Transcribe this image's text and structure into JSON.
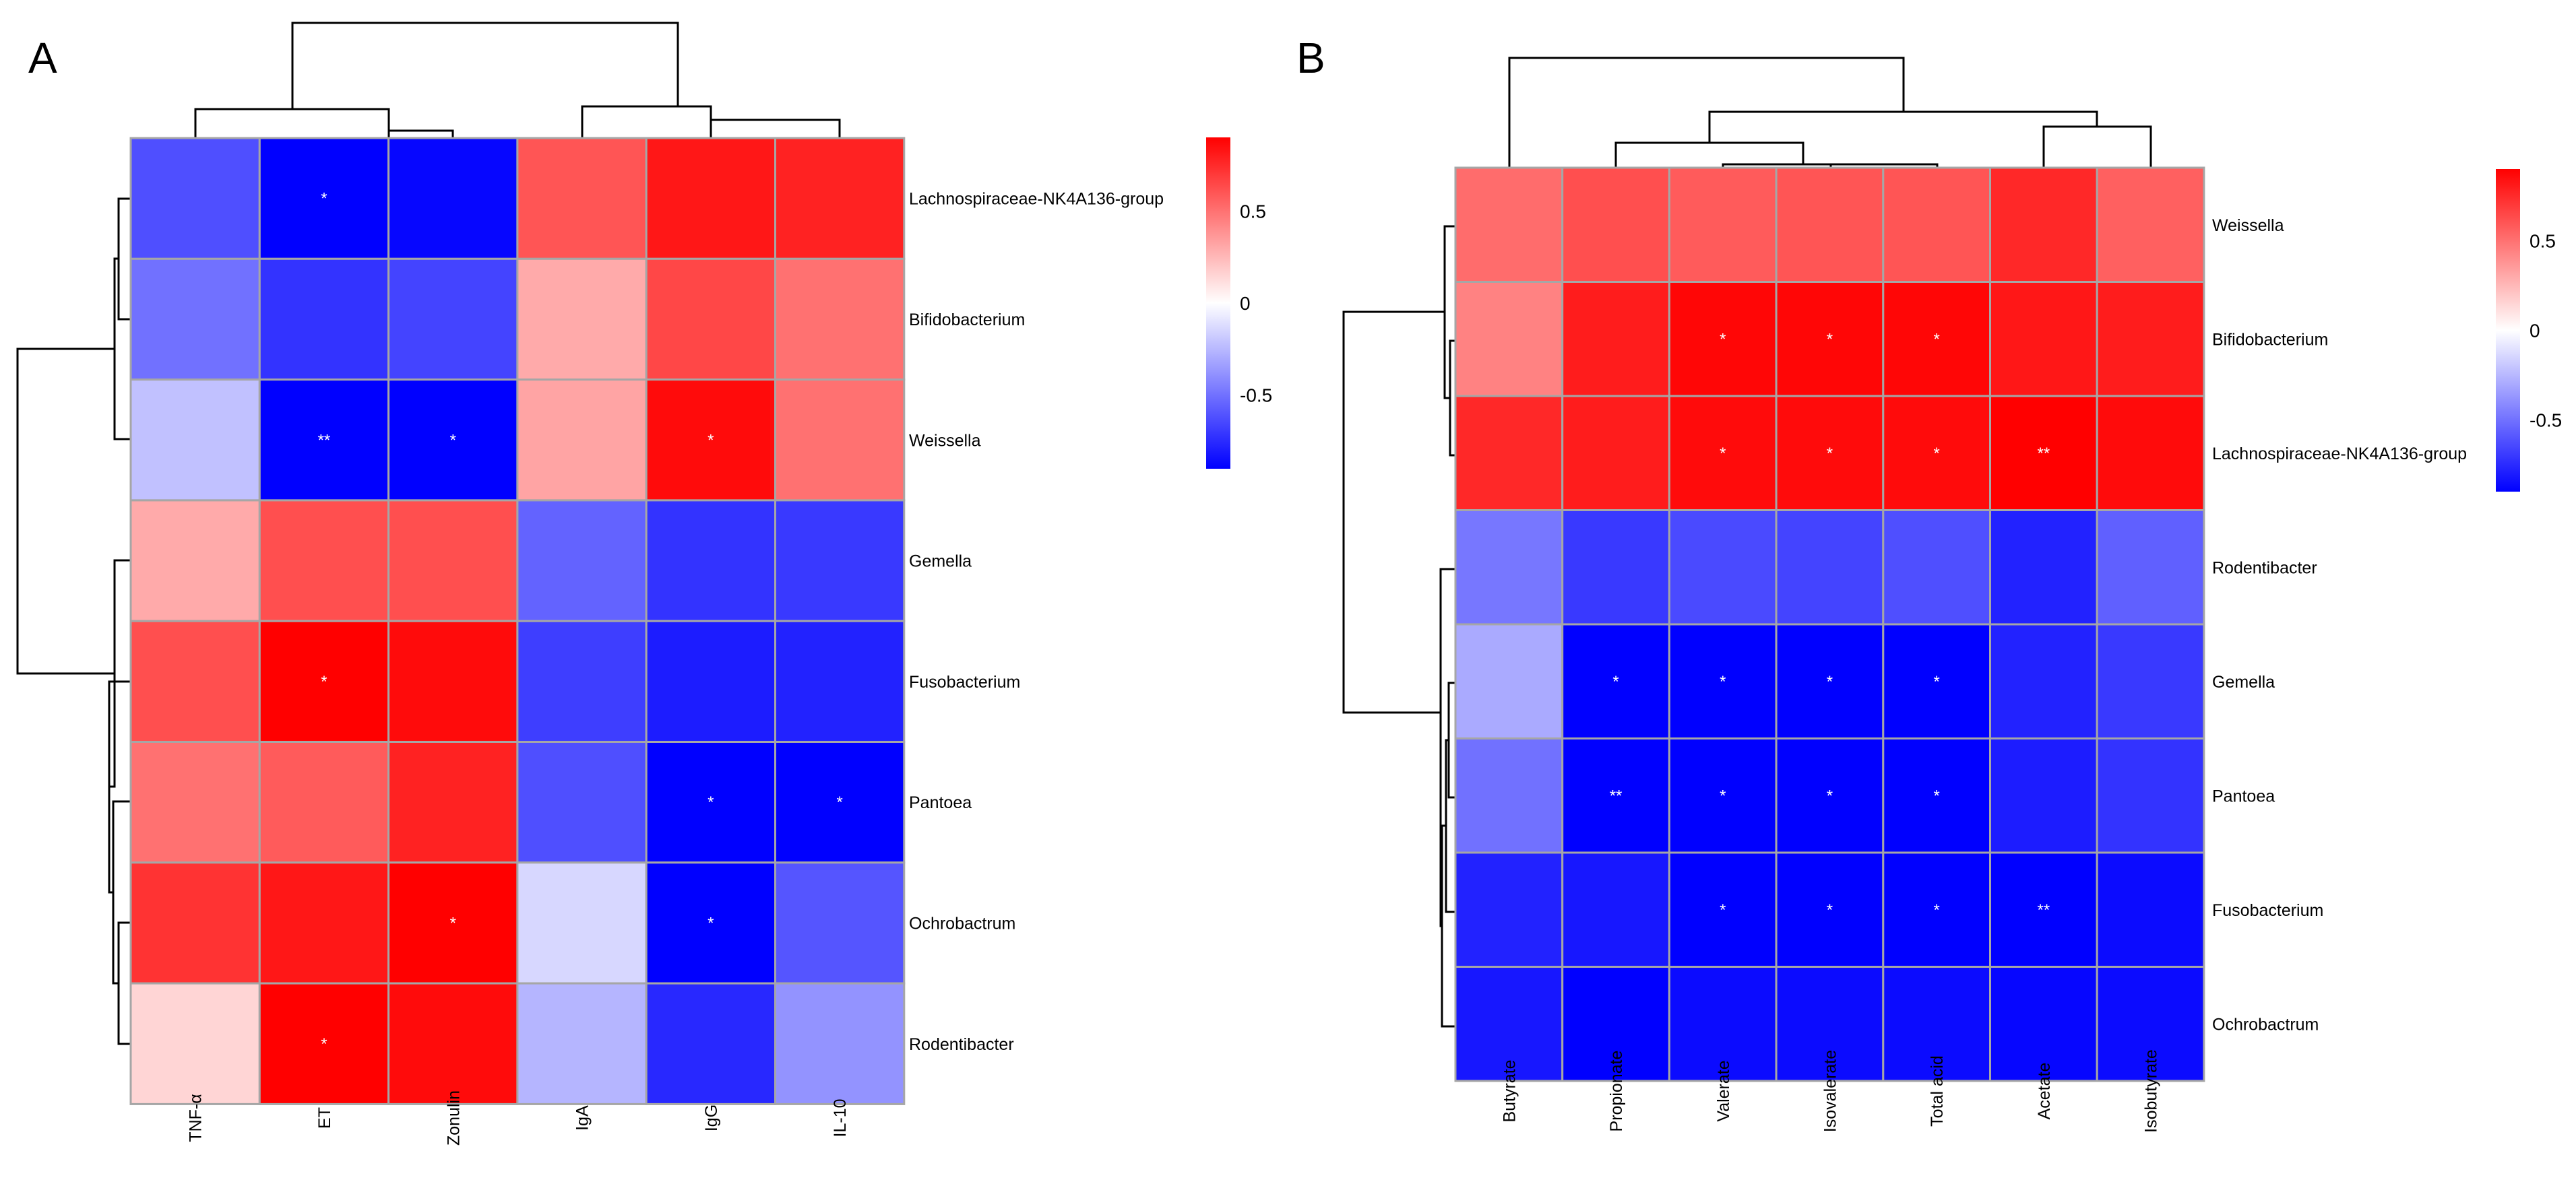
{
  "chart_data": [
    {
      "type": "heatmap",
      "panel_label": "A",
      "columns": [
        "TNF-α",
        "ET",
        "Zonulin",
        "IgA",
        "IgG",
        "IL-10"
      ],
      "rows": [
        "Lachnospiraceae-NK4A136-group",
        "Bifidobacterium",
        "Weissella",
        "Gemella",
        "Fusobacterium",
        "Pantoea",
        "Ochrobactrum",
        "Rodentibacter"
      ],
      "values": [
        [
          -0.62,
          -0.92,
          -0.88,
          0.6,
          0.82,
          0.78
        ],
        [
          -0.5,
          -0.72,
          -0.66,
          0.3,
          0.65,
          0.5
        ],
        [
          -0.22,
          -0.95,
          -0.94,
          0.32,
          0.86,
          0.5
        ],
        [
          0.3,
          0.62,
          0.62,
          -0.55,
          -0.72,
          -0.7
        ],
        [
          0.62,
          0.92,
          0.86,
          -0.68,
          -0.8,
          -0.78
        ],
        [
          0.5,
          0.58,
          0.78,
          -0.62,
          -0.93,
          -0.93
        ],
        [
          0.72,
          0.82,
          0.92,
          -0.14,
          -0.93,
          -0.6
        ],
        [
          0.15,
          0.9,
          0.86,
          -0.26,
          -0.76,
          -0.38
        ]
      ],
      "significance": [
        [
          "",
          "*",
          "",
          "",
          "",
          ""
        ],
        [
          "",
          "",
          "",
          "",
          "",
          ""
        ],
        [
          "",
          "**",
          "*",
          "",
          "*",
          ""
        ],
        [
          "",
          "",
          "",
          "",
          "",
          ""
        ],
        [
          "",
          "*",
          "",
          "",
          "",
          ""
        ],
        [
          "",
          "",
          "",
          "",
          "*",
          "*"
        ],
        [
          "",
          "",
          "*",
          "",
          "*",
          ""
        ],
        [
          "",
          "*",
          "",
          "",
          "",
          ""
        ]
      ],
      "color_scale": {
        "min": -0.9,
        "max": 0.9,
        "low": "#0000ff",
        "mid": "#ffffff",
        "high": "#ff0000"
      },
      "legend_ticks": [
        0.5,
        0,
        -0.5
      ],
      "legend_tick_labels": [
        "0.5",
        "0",
        "-0.5"
      ],
      "grid_color": "#a6a6a6"
    },
    {
      "type": "heatmap",
      "panel_label": "B",
      "columns": [
        "Butyrate",
        "Propionate",
        "Valerate",
        "Isovalerate",
        "Total acid",
        "Acetate",
        "Isobutyrate"
      ],
      "rows": [
        "Weissella",
        "Bifidobacterium",
        "Lachnospiraceae-NK4A136-group",
        "Rodentibacter",
        "Gemella",
        "Pantoea",
        "Fusobacterium",
        "Ochrobactrum"
      ],
      "values": [
        [
          0.52,
          0.62,
          0.58,
          0.6,
          0.6,
          0.76,
          0.56
        ],
        [
          0.44,
          0.8,
          0.88,
          0.88,
          0.88,
          0.82,
          0.8
        ],
        [
          0.76,
          0.8,
          0.86,
          0.86,
          0.86,
          0.92,
          0.86
        ],
        [
          -0.48,
          -0.7,
          -0.64,
          -0.66,
          -0.62,
          -0.78,
          -0.56
        ],
        [
          -0.3,
          -0.92,
          -0.9,
          -0.9,
          -0.9,
          -0.78,
          -0.7
        ],
        [
          -0.5,
          -0.92,
          -0.9,
          -0.9,
          -0.9,
          -0.8,
          -0.72
        ],
        [
          -0.78,
          -0.82,
          -0.93,
          -0.93,
          -0.93,
          -0.92,
          -0.86
        ],
        [
          -0.82,
          -0.9,
          -0.86,
          -0.86,
          -0.86,
          -0.88,
          -0.86
        ]
      ],
      "significance": [
        [
          "",
          "",
          "",
          "",
          "",
          "",
          ""
        ],
        [
          "",
          "",
          "*",
          "*",
          "*",
          "",
          ""
        ],
        [
          "",
          "",
          "*",
          "*",
          "*",
          "**",
          ""
        ],
        [
          "",
          "",
          "",
          "",
          "",
          "",
          ""
        ],
        [
          "",
          "*",
          "*",
          "*",
          "*",
          "",
          ""
        ],
        [
          "",
          "**",
          "*",
          "*",
          "*",
          "",
          ""
        ],
        [
          "",
          "",
          "*",
          "*",
          "*",
          "**",
          ""
        ],
        [
          "",
          "",
          "",
          "",
          "",
          "",
          ""
        ]
      ],
      "color_scale": {
        "min": -0.9,
        "max": 0.9,
        "low": "#0000ff",
        "mid": "#ffffff",
        "high": "#ff0000"
      },
      "legend_ticks": [
        0.5,
        0,
        -0.5
      ],
      "legend_tick_labels": [
        "0.5",
        "0",
        "-0.5"
      ],
      "grid_color": "#a6a6a6"
    }
  ]
}
